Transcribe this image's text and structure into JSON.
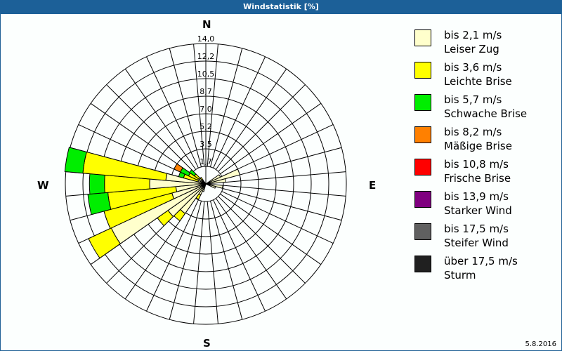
{
  "window": {
    "title": "Windstatistik [%]",
    "date": "5.8.2016"
  },
  "compass": {
    "north": "N",
    "east": "E",
    "south": "S",
    "west": "W"
  },
  "legend": [
    {
      "range": "bis 2,1 m/s",
      "name": "Leiser Zug",
      "color": "#ffffcc"
    },
    {
      "range": "bis 3,6 m/s",
      "name": "Leichte Brise",
      "color": "#ffff00"
    },
    {
      "range": "bis 5,7 m/s",
      "name": "Schwache Brise",
      "color": "#00ee00"
    },
    {
      "range": "bis 8,2 m/s",
      "name": "Mäßige Brise",
      "color": "#ff8000"
    },
    {
      "range": "bis 10,8 m/s",
      "name": "Frische Brise",
      "color": "#ff0000"
    },
    {
      "range": "bis 13,9 m/s",
      "name": "Starker Wind",
      "color": "#800080"
    },
    {
      "range": "bis 17,5 m/s",
      "name": "Steifer Wind",
      "color": "#606060"
    },
    {
      "range": "über 17,5 m/s",
      "name": "Sturm",
      "color": "#202020"
    }
  ],
  "chart_data": {
    "type": "wind-rose (stacked polar bar)",
    "title": "Windstatistik [%]",
    "date": "5.8.2016",
    "radial_axis": {
      "unit": "%",
      "ticks": [
        "1,7",
        "3,5",
        "5,2",
        "7,0",
        "8,7",
        "10,5",
        "12,2",
        "14,0"
      ],
      "max": 14.0
    },
    "direction_labels": [
      "N",
      "E",
      "S",
      "W"
    ],
    "sector_width_deg": 10,
    "series_names": [
      "bis 2,1 m/s",
      "bis 3,6 m/s",
      "bis 5,7 m/s",
      "bis 8,2 m/s"
    ],
    "sectors": [
      {
        "dir": 60,
        "values": [
          1.6,
          0,
          0,
          0
        ]
      },
      {
        "dir": 70,
        "values": [
          3.5,
          0,
          0,
          0
        ]
      },
      {
        "dir": 80,
        "values": [
          2.0,
          0,
          0,
          0
        ]
      },
      {
        "dir": 100,
        "values": [
          1.7,
          0,
          0,
          0
        ]
      },
      {
        "dir": 110,
        "values": [
          1.0,
          0,
          0,
          0
        ]
      },
      {
        "dir": 200,
        "values": [
          0.8,
          0,
          0,
          0
        ]
      },
      {
        "dir": 210,
        "values": [
          1.2,
          0.5,
          0,
          0
        ]
      },
      {
        "dir": 220,
        "values": [
          3.6,
          0.9,
          0,
          0
        ]
      },
      {
        "dir": 230,
        "values": [
          4.6,
          1.3,
          0,
          0
        ]
      },
      {
        "dir": 240,
        "values": [
          10.4,
          2.5,
          0,
          0
        ]
      },
      {
        "dir": 250,
        "values": [
          3.5,
          7.0,
          0,
          0
        ]
      },
      {
        "dir": 260,
        "values": [
          3.0,
          6.8,
          2.0,
          0
        ]
      },
      {
        "dir": 270,
        "values": [
          5.6,
          4.5,
          1.5,
          0
        ]
      },
      {
        "dir": 280,
        "values": [
          4.0,
          8.3,
          1.8,
          0
        ]
      },
      {
        "dir": 290,
        "values": [
          0.8,
          1.5,
          0.5,
          0
        ]
      },
      {
        "dir": 300,
        "values": [
          0.9,
          1.0,
          0.9,
          0.7
        ]
      },
      {
        "dir": 310,
        "values": [
          0.8,
          0.6,
          0.6,
          0
        ]
      },
      {
        "dir": 320,
        "values": [
          0.5,
          0.3,
          0,
          0
        ]
      }
    ]
  }
}
